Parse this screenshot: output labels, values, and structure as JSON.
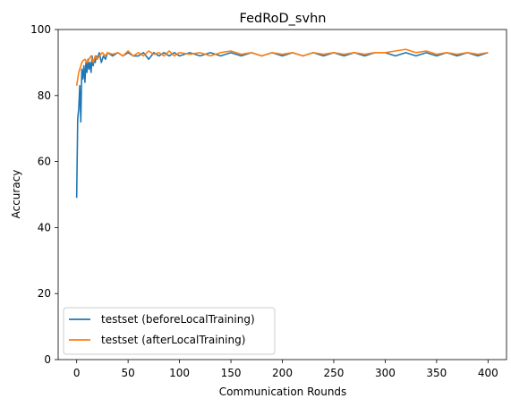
{
  "chart_data": {
    "type": "line",
    "title": "FedRoD_svhn",
    "xlabel": "Communication Rounds",
    "ylabel": "Accuracy",
    "xlim": [
      -18,
      418
    ],
    "ylim": [
      0,
      100
    ],
    "xticks": [
      0,
      50,
      100,
      150,
      200,
      250,
      300,
      350,
      400
    ],
    "yticks": [
      0,
      20,
      40,
      60,
      80,
      100
    ],
    "grid": false,
    "legend_position": "lower-left",
    "series": [
      {
        "name": "testset (beforeLocalTraining)",
        "color": "#1f77b4",
        "x": [
          0,
          1,
          2,
          3,
          4,
          5,
          6,
          7,
          8,
          9,
          10,
          11,
          12,
          13,
          14,
          15,
          16,
          17,
          18,
          19,
          20,
          22,
          24,
          26,
          28,
          30,
          35,
          40,
          45,
          50,
          55,
          60,
          65,
          70,
          75,
          80,
          85,
          90,
          95,
          100,
          110,
          120,
          130,
          140,
          150,
          160,
          170,
          180,
          190,
          200,
          210,
          220,
          230,
          240,
          250,
          260,
          270,
          280,
          290,
          300,
          310,
          320,
          330,
          340,
          350,
          360,
          370,
          380,
          390,
          400
        ],
        "y": [
          49,
          73,
          76,
          83,
          72,
          88,
          85,
          89,
          84,
          90,
          87,
          91,
          88,
          90,
          87,
          92,
          89,
          91,
          90,
          92,
          91,
          93,
          90,
          92,
          91,
          93,
          92,
          93,
          92,
          93,
          92,
          92,
          93,
          91,
          93,
          92,
          93,
          92,
          93,
          92,
          93,
          92,
          93,
          92,
          93,
          92,
          93,
          92,
          93,
          92,
          93,
          92,
          93,
          92,
          93,
          92,
          93,
          92,
          93,
          93,
          92,
          93,
          92,
          93,
          92,
          93,
          92,
          93,
          92,
          93
        ]
      },
      {
        "name": "testset (afterLocalTraining)",
        "color": "#ff7f0e",
        "x": [
          0,
          1,
          2,
          3,
          4,
          5,
          6,
          8,
          10,
          12,
          14,
          16,
          18,
          20,
          22,
          25,
          28,
          30,
          35,
          40,
          45,
          50,
          55,
          60,
          65,
          70,
          75,
          80,
          85,
          90,
          95,
          100,
          110,
          120,
          130,
          140,
          150,
          160,
          170,
          180,
          190,
          200,
          210,
          220,
          230,
          240,
          250,
          260,
          270,
          280,
          290,
          300,
          310,
          320,
          330,
          340,
          350,
          360,
          370,
          380,
          390,
          400
        ],
        "y": [
          83,
          85,
          87,
          88,
          89,
          90,
          90.5,
          91,
          90,
          91,
          92,
          90,
          92,
          91,
          92,
          93,
          92,
          93,
          92.5,
          93,
          92,
          93.5,
          92,
          93,
          92,
          93.5,
          92.5,
          93,
          92,
          93.5,
          92,
          93,
          92.5,
          93,
          92,
          93,
          93.5,
          92.5,
          93,
          92,
          93,
          92.5,
          93,
          92,
          93,
          92.5,
          93,
          92.5,
          93,
          92.5,
          93,
          93,
          93.5,
          94,
          93,
          93.5,
          92.5,
          93,
          92.5,
          93,
          92.5,
          93
        ]
      }
    ]
  }
}
